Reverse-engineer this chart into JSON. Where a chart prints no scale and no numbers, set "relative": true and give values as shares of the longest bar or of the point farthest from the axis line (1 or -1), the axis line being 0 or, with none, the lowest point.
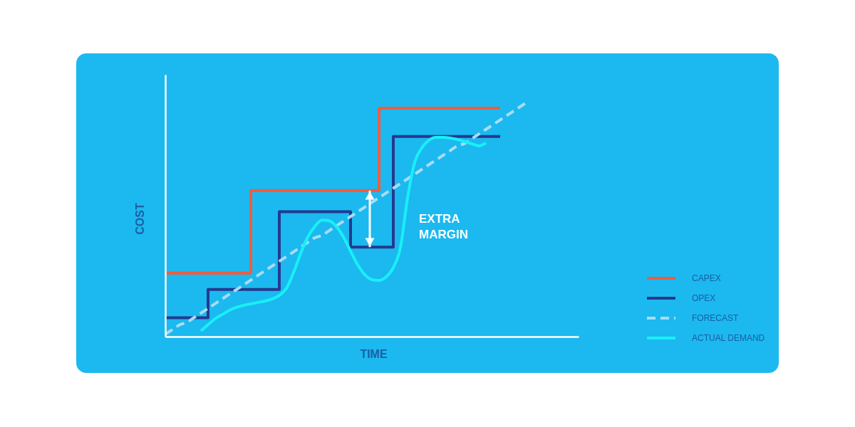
{
  "chart_data": {
    "type": "line",
    "relative": true,
    "xlabel": "TIME",
    "ylabel": "COST",
    "categories": [
      null,
      null,
      null,
      null,
      null,
      null,
      null,
      null,
      null,
      null,
      null,
      null,
      null,
      null,
      null,
      null,
      null,
      null,
      null,
      null,
      null,
      null,
      null,
      null,
      null,
      null,
      null,
      null,
      null,
      null,
      null,
      null,
      null,
      null,
      null,
      null,
      null,
      null,
      null,
      null,
      null,
      null,
      null,
      null,
      null,
      null,
      null,
      null,
      null,
      null,
      null,
      null,
      null,
      null,
      null,
      null,
      null,
      null,
      null
    ],
    "series": [
      {
        "name": "CAPEX",
        "type": "step",
        "color": "#f45b3c",
        "values": [
          0.27,
          0.27,
          0.27,
          0.27,
          0.27,
          0.27,
          0.27,
          0.27,
          0.27,
          0.27,
          0.27,
          0.27,
          0.62,
          0.62,
          0.62,
          0.62,
          0.62,
          0.62,
          0.62,
          0.62,
          0.62,
          0.62,
          0.62,
          0.62,
          0.62,
          0.62,
          0.62,
          0.62,
          0.62,
          0.62,
          0.97,
          0.97,
          0.97,
          0.97,
          0.97,
          0.97,
          0.97,
          0.97,
          0.97,
          0.97,
          0.97,
          0.97,
          0.97,
          0.97,
          0.97,
          0.97,
          0.97,
          0.97,
          null,
          null,
          null,
          null,
          null,
          null,
          null,
          null,
          null,
          null,
          null
        ]
      },
      {
        "name": "OPEX",
        "type": "step",
        "color": "#24398f",
        "values": [
          0.08,
          0.08,
          0.08,
          0.08,
          0.08,
          0.08,
          0.2,
          0.2,
          0.2,
          0.2,
          0.2,
          0.2,
          0.2,
          0.2,
          0.2,
          0.2,
          0.53,
          0.53,
          0.53,
          0.53,
          0.53,
          0.53,
          0.53,
          0.53,
          0.53,
          0.53,
          0.38,
          0.38,
          0.38,
          0.38,
          0.38,
          0.38,
          0.85,
          0.85,
          0.85,
          0.85,
          0.85,
          0.85,
          0.85,
          0.85,
          0.85,
          0.85,
          0.85,
          0.85,
          0.85,
          0.85,
          0.85,
          0.85,
          null,
          null,
          null,
          null,
          null,
          null,
          null,
          null,
          null,
          null,
          null
        ]
      },
      {
        "name": "FORECAST",
        "line_style": "dashed",
        "color": "#a9dcf4",
        "values": [
          0.01,
          0.03,
          0.05,
          0.06,
          0.08,
          0.1,
          0.12,
          0.14,
          0.16,
          0.18,
          0.2,
          0.22,
          0.24,
          0.26,
          0.28,
          0.3,
          0.32,
          0.34,
          0.36,
          0.38,
          0.4,
          0.42,
          0.43,
          0.45,
          0.47,
          0.49,
          0.51,
          0.53,
          0.55,
          0.57,
          0.59,
          0.61,
          0.63,
          0.65,
          0.67,
          0.69,
          0.71,
          0.73,
          0.75,
          0.77,
          0.79,
          0.81,
          0.82,
          0.84,
          0.86,
          0.88,
          0.9,
          0.92,
          0.94,
          0.96,
          0.98,
          1.0,
          null,
          null,
          null,
          null,
          null,
          null,
          null
        ]
      },
      {
        "name": "ACTUAL DEMAND",
        "color": "#18f0f7",
        "values": [
          null,
          null,
          null,
          null,
          null,
          0.024,
          0.051,
          0.076,
          0.094,
          0.112,
          0.124,
          0.133,
          0.139,
          0.145,
          0.151,
          0.16,
          0.175,
          0.205,
          0.272,
          0.353,
          0.423,
          0.468,
          0.495,
          0.492,
          0.468,
          0.423,
          0.363,
          0.305,
          0.263,
          0.242,
          0.239,
          0.254,
          0.293,
          0.378,
          0.589,
          0.74,
          0.801,
          0.834,
          0.846,
          0.846,
          0.843,
          0.837,
          0.828,
          0.819,
          0.81,
          0.822,
          null,
          null,
          null,
          null,
          null,
          null,
          null,
          null,
          null,
          null,
          null,
          null,
          null
        ]
      }
    ],
    "annotations": [
      "EXTRA MARGIN"
    ],
    "legend": "bottom right",
    "grid": false
  }
}
